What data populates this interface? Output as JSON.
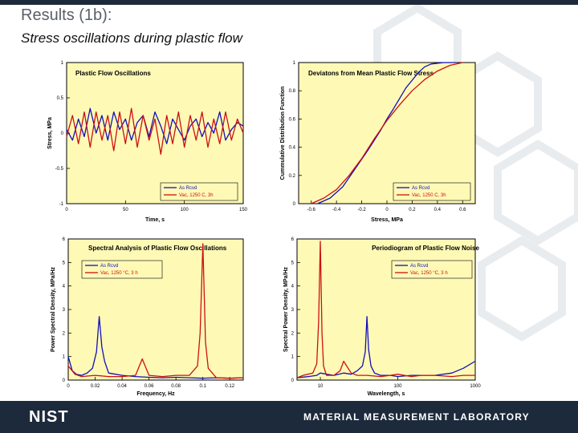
{
  "slide": {
    "title": "Results (1b):",
    "subtitle": "Stress oscillations during plastic flow",
    "footer_logo": "NIST",
    "footer_lab": "MATERIAL MEASUREMENT LABORATORY"
  },
  "colors": {
    "plot_bg": "#fff9b6",
    "as_rcvd": "#1111bb",
    "vac": "#cc1111",
    "footer": "#1c2a3c"
  },
  "chart_data": [
    {
      "type": "line",
      "title": "Plastic Flow Oscillations",
      "xlabel": "Time, s",
      "ylabel": "Stress, MPa",
      "xlim": [
        0,
        150
      ],
      "ylim": [
        -1,
        1
      ],
      "xticks": [
        "0",
        "50",
        "100",
        "150"
      ],
      "yticks": [
        "-1",
        "-0.5",
        "0",
        "0.5",
        "1"
      ],
      "legend": "bottom-right",
      "series": [
        {
          "name": "As Rcvd",
          "color": "#1111bb",
          "x": [
            0,
            5,
            10,
            15,
            20,
            25,
            30,
            35,
            40,
            45,
            50,
            55,
            60,
            65,
            70,
            75,
            80,
            85,
            90,
            95,
            100,
            105,
            110,
            115,
            120,
            125,
            130,
            135,
            140,
            145,
            150
          ],
          "values": [
            0.05,
            -0.1,
            0.2,
            -0.05,
            0.35,
            0.0,
            0.25,
            -0.1,
            0.3,
            0.05,
            0.2,
            -0.1,
            0.15,
            0.25,
            -0.05,
            0.3,
            0.1,
            -0.15,
            0.2,
            0.05,
            -0.1,
            0.1,
            0.2,
            -0.05,
            0.15,
            0.0,
            0.3,
            -0.1,
            0.05,
            0.15,
            0.1
          ]
        },
        {
          "name": "Vac, 1250 C, 3h",
          "color": "#cc1111",
          "x": [
            0,
            5,
            10,
            15,
            20,
            25,
            30,
            35,
            40,
            45,
            50,
            55,
            60,
            65,
            70,
            75,
            80,
            85,
            90,
            95,
            100,
            105,
            110,
            115,
            120,
            125,
            130,
            135,
            140,
            145,
            150
          ],
          "values": [
            -0.05,
            0.25,
            -0.15,
            0.3,
            -0.2,
            0.3,
            -0.1,
            0.25,
            -0.25,
            0.3,
            -0.15,
            0.35,
            -0.2,
            0.25,
            -0.1,
            0.2,
            -0.3,
            0.25,
            -0.15,
            0.3,
            -0.2,
            0.25,
            -0.1,
            0.3,
            -0.2,
            0.2,
            -0.15,
            0.3,
            -0.1,
            0.2,
            0.0
          ]
        }
      ]
    },
    {
      "type": "line",
      "title": "Deviatons from Mean Plastic Flow Stress",
      "xlabel": "Stress, MPa",
      "ylabel": "Cummulative Distribution Function",
      "xlim": [
        -0.7,
        0.7
      ],
      "ylim": [
        0,
        1
      ],
      "xticks": [
        "-0.6",
        "-0.4",
        "-0.2",
        "0",
        "0.2",
        "0.4",
        "0.6"
      ],
      "yticks": [
        "0",
        "0.2",
        "0.4",
        "0.6",
        "0.8",
        "1"
      ],
      "legend": "bottom-right",
      "series": [
        {
          "name": "As Rcvd",
          "color": "#1111bb",
          "x": [
            -0.55,
            -0.45,
            -0.35,
            -0.25,
            -0.15,
            -0.05,
            0.0,
            0.05,
            0.15,
            0.25,
            0.3,
            0.35,
            0.45,
            0.55
          ],
          "values": [
            0.0,
            0.04,
            0.12,
            0.25,
            0.38,
            0.52,
            0.6,
            0.67,
            0.82,
            0.93,
            0.97,
            0.99,
            1.0,
            1.0
          ]
        },
        {
          "name": "Vac, 1250 C, 3h",
          "color": "#cc1111",
          "x": [
            -0.6,
            -0.5,
            -0.4,
            -0.3,
            -0.2,
            -0.1,
            0.0,
            0.1,
            0.2,
            0.3,
            0.4,
            0.5,
            0.6
          ],
          "values": [
            0.0,
            0.04,
            0.1,
            0.2,
            0.32,
            0.46,
            0.59,
            0.7,
            0.8,
            0.88,
            0.94,
            0.98,
            1.0
          ]
        }
      ]
    },
    {
      "type": "line",
      "title": "Spectral Analysis of Plastic Flow Oscillations",
      "xlabel": "Frequency, Hz",
      "ylabel": "Power Spectral Density, MPa/Hz",
      "xlim": [
        0,
        0.13
      ],
      "ylim": [
        0,
        6
      ],
      "xticks": [
        "0",
        "0.02",
        "0.04",
        "0.06",
        "0.08",
        "0.1",
        "0.12"
      ],
      "yticks": [
        "0",
        "1",
        "2",
        "3",
        "4",
        "5",
        "6"
      ],
      "legend": "top-left",
      "series": [
        {
          "name": "As Rcvd",
          "color": "#1111bb",
          "x": [
            0,
            0.003,
            0.006,
            0.01,
            0.014,
            0.018,
            0.021,
            0.023,
            0.025,
            0.027,
            0.03,
            0.035,
            0.04,
            0.05,
            0.06,
            0.07,
            0.08,
            0.09,
            0.1,
            0.11,
            0.12,
            0.13
          ],
          "values": [
            1.0,
            0.4,
            0.25,
            0.2,
            0.3,
            0.5,
            1.2,
            2.7,
            1.4,
            0.8,
            0.3,
            0.25,
            0.2,
            0.15,
            0.12,
            0.1,
            0.12,
            0.1,
            0.08,
            0.1,
            0.08,
            0.1
          ]
        },
        {
          "name": "Vac, 1250 °C, 3 h",
          "color": "#cc1111",
          "x": [
            0,
            0.005,
            0.01,
            0.02,
            0.03,
            0.04,
            0.05,
            0.055,
            0.06,
            0.07,
            0.08,
            0.09,
            0.096,
            0.098,
            0.1,
            0.102,
            0.104,
            0.11,
            0.12,
            0.13
          ],
          "values": [
            0.6,
            0.25,
            0.15,
            0.2,
            0.15,
            0.15,
            0.2,
            0.9,
            0.2,
            0.15,
            0.2,
            0.2,
            0.6,
            2.0,
            5.8,
            1.6,
            0.5,
            0.1,
            0.08,
            0.1
          ]
        }
      ]
    },
    {
      "type": "line",
      "title": "Periodiogram of Plastic Flow Noise",
      "xlabel": "Wavelength, s",
      "ylabel": "Spectral Power Density, MPa/Hz",
      "xscale": "log",
      "xlim": [
        5,
        1000
      ],
      "ylim": [
        0,
        6
      ],
      "xticks": [
        "10",
        "100",
        "1000"
      ],
      "yticks": [
        "0",
        "1",
        "2",
        "3",
        "4",
        "5",
        "6"
      ],
      "legend": "top-right",
      "series": [
        {
          "name": "As Rcvd",
          "color": "#1111bb",
          "x": [
            5,
            7,
            9,
            10,
            12,
            15,
            20,
            25,
            30,
            35,
            38,
            40,
            42,
            45,
            50,
            60,
            80,
            100,
            150,
            200,
            300,
            500,
            700,
            1000
          ],
          "values": [
            0.1,
            0.15,
            0.2,
            0.3,
            0.25,
            0.2,
            0.3,
            0.25,
            0.4,
            0.6,
            1.2,
            2.7,
            1.3,
            0.6,
            0.3,
            0.2,
            0.2,
            0.15,
            0.2,
            0.2,
            0.2,
            0.3,
            0.5,
            0.8
          ]
        },
        {
          "name": "Vac, 1250 °C, 3 h",
          "color": "#cc1111",
          "x": [
            5,
            6,
            8,
            9,
            9.5,
            10,
            10.5,
            11,
            12,
            15,
            18,
            20,
            25,
            30,
            40,
            60,
            80,
            100,
            150,
            200,
            300,
            500,
            700,
            1000
          ],
          "values": [
            0.1,
            0.2,
            0.3,
            0.7,
            2.5,
            5.9,
            2.0,
            0.6,
            0.2,
            0.2,
            0.4,
            0.8,
            0.3,
            0.2,
            0.2,
            0.15,
            0.2,
            0.25,
            0.15,
            0.2,
            0.2,
            0.15,
            0.2,
            0.2
          ]
        }
      ]
    }
  ]
}
